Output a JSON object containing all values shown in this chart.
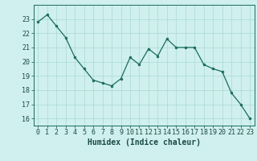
{
  "x": [
    0,
    1,
    2,
    3,
    4,
    5,
    6,
    7,
    8,
    9,
    10,
    11,
    12,
    13,
    14,
    15,
    16,
    17,
    18,
    19,
    20,
    21,
    22,
    23
  ],
  "y": [
    22.8,
    23.3,
    22.5,
    21.7,
    20.3,
    19.5,
    18.7,
    18.5,
    18.3,
    18.8,
    20.3,
    19.8,
    20.9,
    20.4,
    21.6,
    21.0,
    21.0,
    21.0,
    19.8,
    19.5,
    19.3,
    17.8,
    17.0,
    16.0
  ],
  "xlabel": "Humidex (Indice chaleur)",
  "ylim": [
    15.5,
    24.0
  ],
  "xlim": [
    -0.5,
    23.5
  ],
  "yticks": [
    16,
    17,
    18,
    19,
    20,
    21,
    22,
    23
  ],
  "xticks": [
    0,
    1,
    2,
    3,
    4,
    5,
    6,
    7,
    8,
    9,
    10,
    11,
    12,
    13,
    14,
    15,
    16,
    17,
    18,
    19,
    20,
    21,
    22,
    23
  ],
  "line_color": "#1a6b5e",
  "marker_color": "#1a6b5e",
  "bg_color": "#cff0ee",
  "grid_color": "#aad8d4",
  "axis_color": "#1a6b5e",
  "text_color": "#1a4a44",
  "xlabel_fontsize": 7,
  "tick_fontsize": 6
}
